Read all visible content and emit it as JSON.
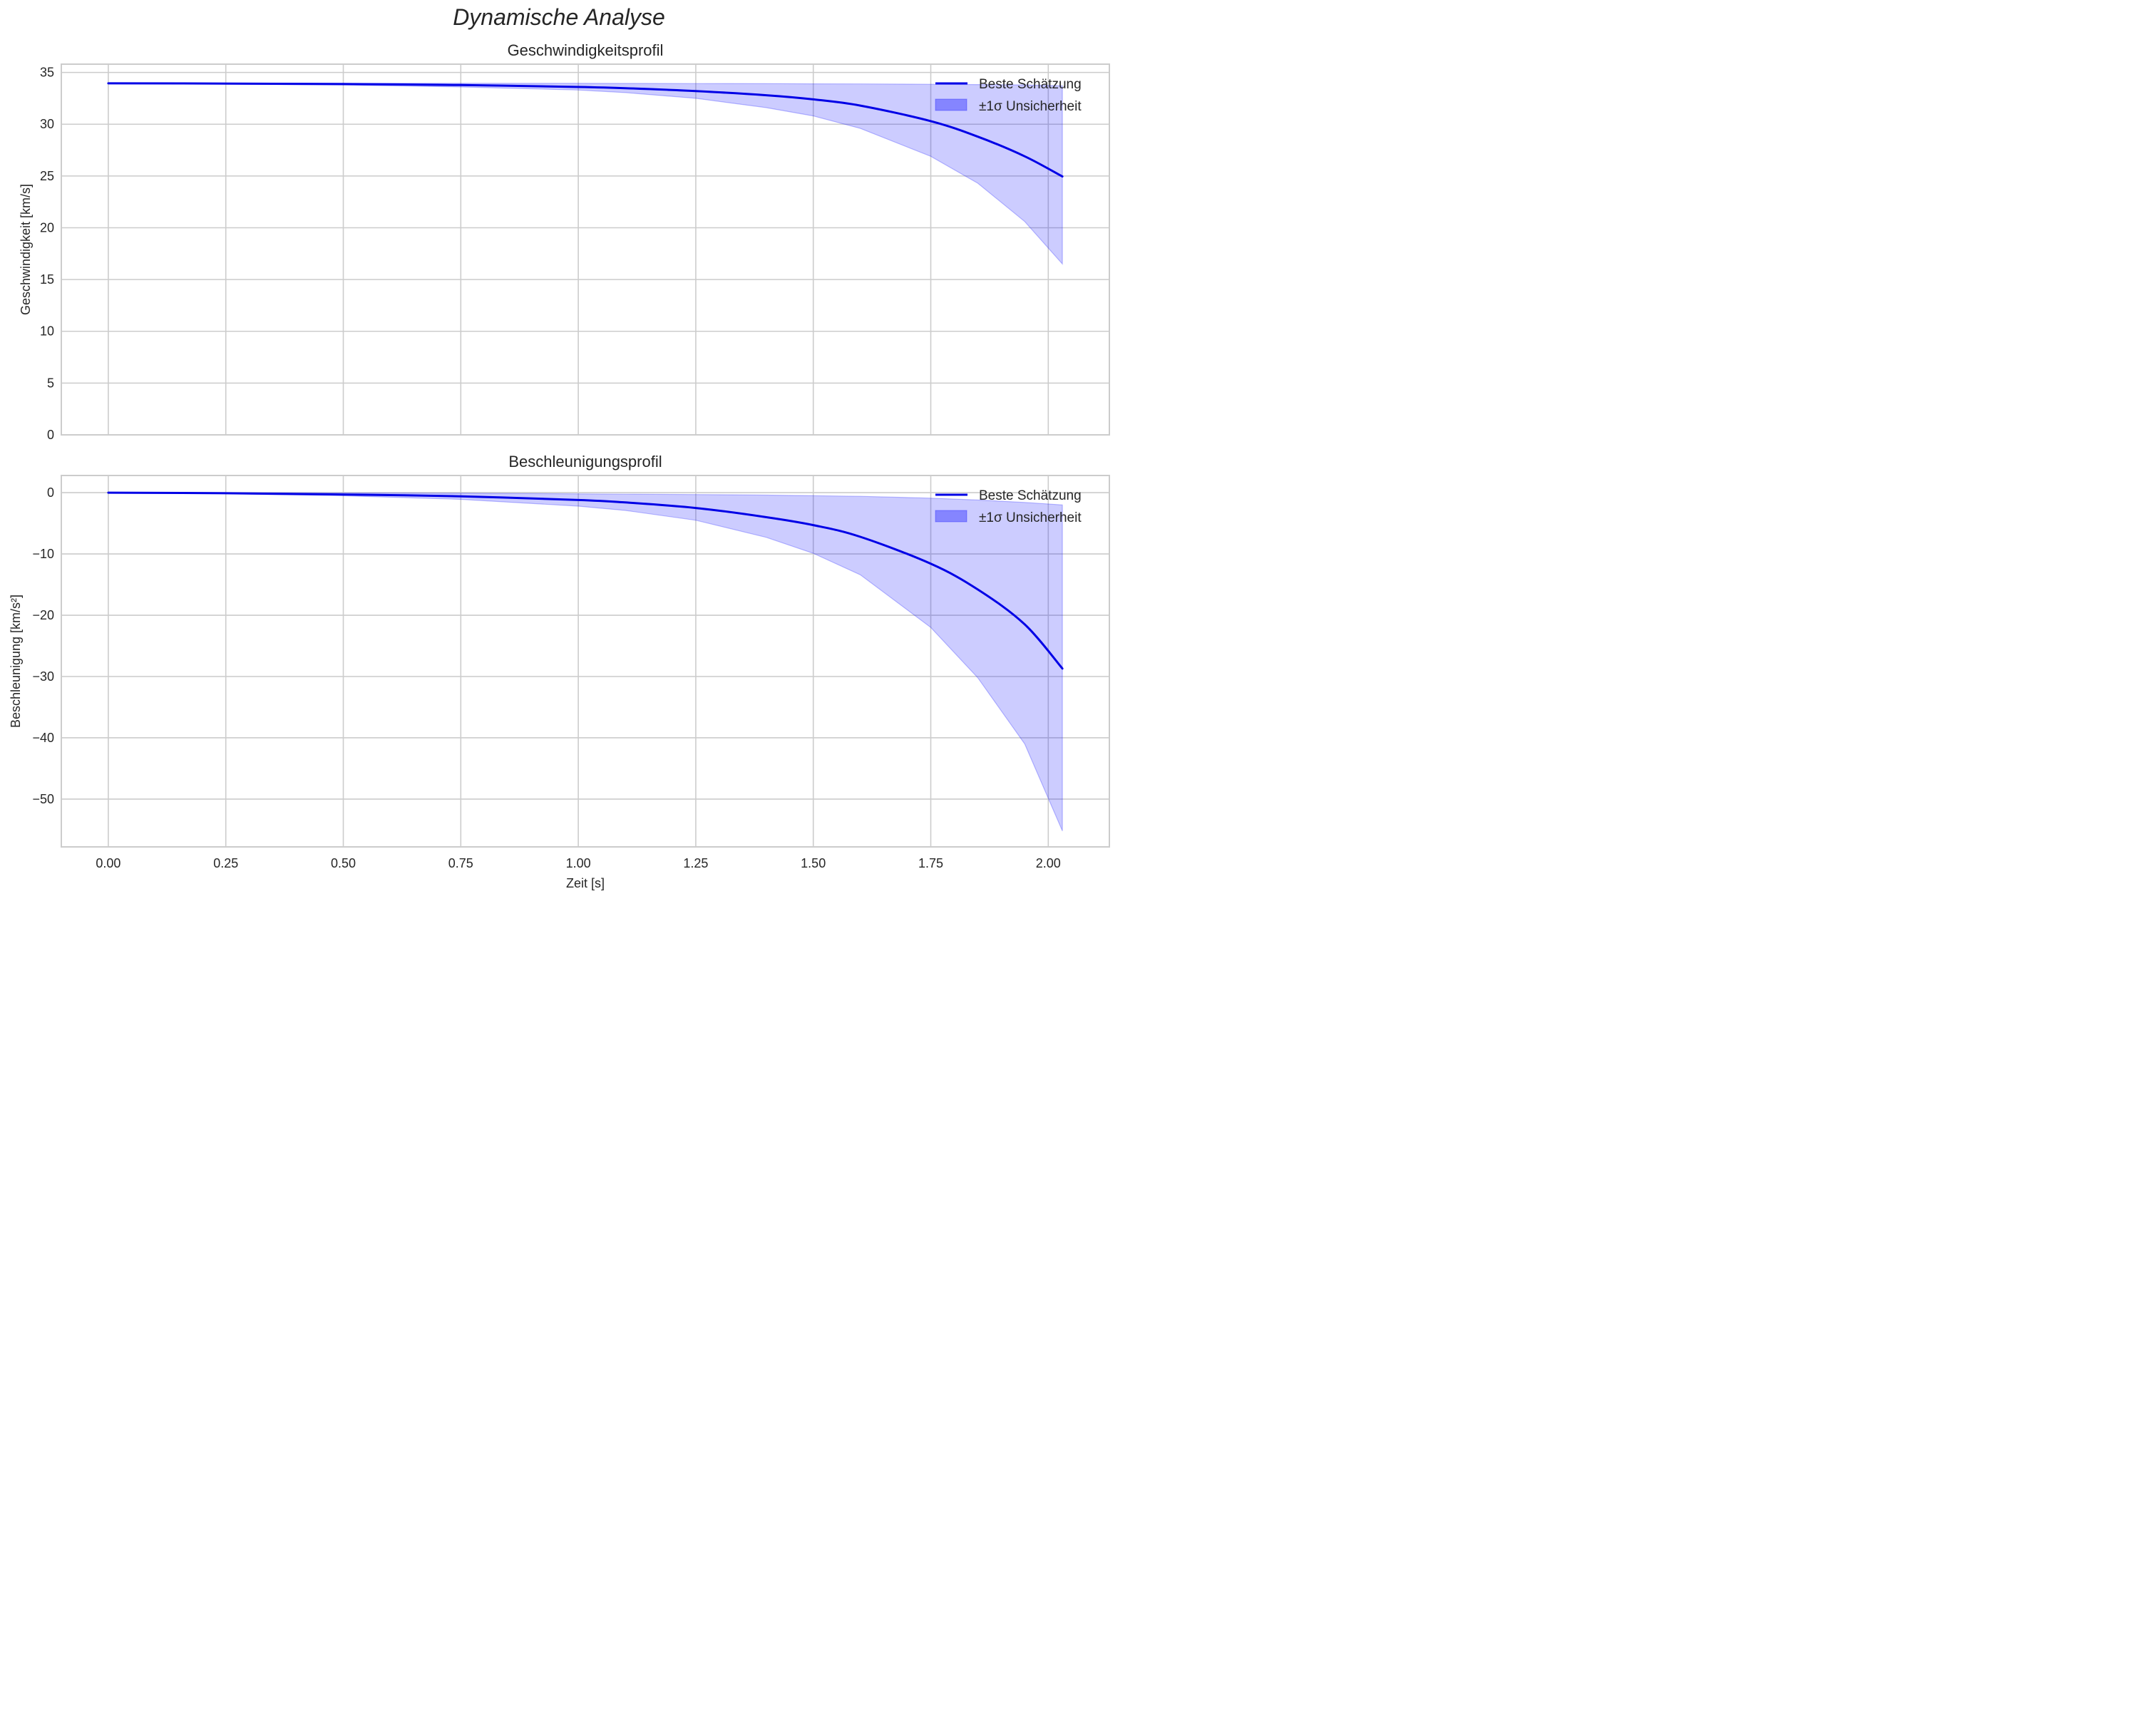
{
  "figure": {
    "suptitle": "Dynamische Analyse"
  },
  "colors": {
    "line": "#0000e6",
    "band_fill": "#0000ff",
    "band_alpha": 0.2,
    "grid": "#cccccc",
    "spine": "#cccccc"
  },
  "chart_data": [
    {
      "type": "line",
      "title": "Geschwindigkeitsprofil",
      "xlabel": "",
      "ylabel": "Geschwindigkeit [km/s]",
      "xlim": [
        -0.1,
        2.13
      ],
      "ylim": [
        0,
        35.8
      ],
      "xticks": [
        "0.00",
        "0.25",
        "0.50",
        "0.75",
        "1.00",
        "1.25",
        "1.50",
        "1.75",
        "2.00"
      ],
      "yticks": [
        "0",
        "5",
        "10",
        "15",
        "20",
        "25",
        "30",
        "35"
      ],
      "grid": true,
      "legend_position": "upper right",
      "legend": [
        "Beste Schätzung",
        "±1σ Unsicherheit"
      ],
      "x": [
        0.0,
        0.25,
        0.5,
        0.75,
        1.0,
        1.1,
        1.25,
        1.4,
        1.5,
        1.6,
        1.75,
        1.85,
        1.95,
        2.03
      ],
      "series": [
        {
          "name": "Beste Schätzung",
          "values": [
            33.95,
            33.93,
            33.88,
            33.78,
            33.6,
            33.48,
            33.2,
            32.8,
            32.4,
            31.8,
            30.3,
            28.8,
            26.9,
            24.95
          ]
        },
        {
          "name": "±1σ Obergrenze",
          "values": [
            33.97,
            33.97,
            33.96,
            33.95,
            33.95,
            33.94,
            33.93,
            33.92,
            33.9,
            33.89,
            33.86,
            33.83,
            33.8,
            33.7
          ]
        },
        {
          "name": "±1σ Untergrenze",
          "values": [
            33.93,
            33.88,
            33.78,
            33.6,
            33.3,
            33.05,
            32.5,
            31.6,
            30.8,
            29.6,
            26.9,
            24.3,
            20.6,
            16.5
          ]
        }
      ]
    },
    {
      "type": "line",
      "title": "Beschleunigungsprofil",
      "xlabel": "Zeit [s]",
      "ylabel": "Beschleunigung [km/s²]",
      "xlim": [
        -0.1,
        2.13
      ],
      "ylim": [
        -57.8,
        2.8
      ],
      "xticks": [
        "0.00",
        "0.25",
        "0.50",
        "0.75",
        "1.00",
        "1.25",
        "1.50",
        "1.75",
        "2.00"
      ],
      "yticks": [
        "0",
        "−10",
        "−20",
        "−30",
        "−40",
        "−50"
      ],
      "grid": true,
      "legend_position": "upper right",
      "legend": [
        "Beste Schätzung",
        "±1σ Unsicherheit"
      ],
      "x": [
        0.0,
        0.25,
        0.5,
        0.75,
        1.0,
        1.1,
        1.25,
        1.4,
        1.5,
        1.6,
        1.75,
        1.85,
        1.95,
        2.03
      ],
      "series": [
        {
          "name": "Beste Schätzung",
          "values": [
            0.0,
            -0.1,
            -0.3,
            -0.6,
            -1.2,
            -1.6,
            -2.5,
            -4.0,
            -5.3,
            -7.2,
            -11.6,
            -15.8,
            -21.5,
            -28.7
          ]
        },
        {
          "name": "±1σ Obergrenze",
          "values": [
            0.0,
            0.0,
            -0.05,
            -0.1,
            -0.2,
            -0.25,
            -0.3,
            -0.4,
            -0.5,
            -0.6,
            -0.9,
            -1.2,
            -1.6,
            -2.0
          ]
        },
        {
          "name": "±1σ Untergrenze",
          "values": [
            0.0,
            -0.15,
            -0.5,
            -1.1,
            -2.2,
            -2.9,
            -4.5,
            -7.3,
            -9.9,
            -13.4,
            -22.0,
            -30.2,
            -41.0,
            -55.2
          ]
        }
      ]
    }
  ]
}
